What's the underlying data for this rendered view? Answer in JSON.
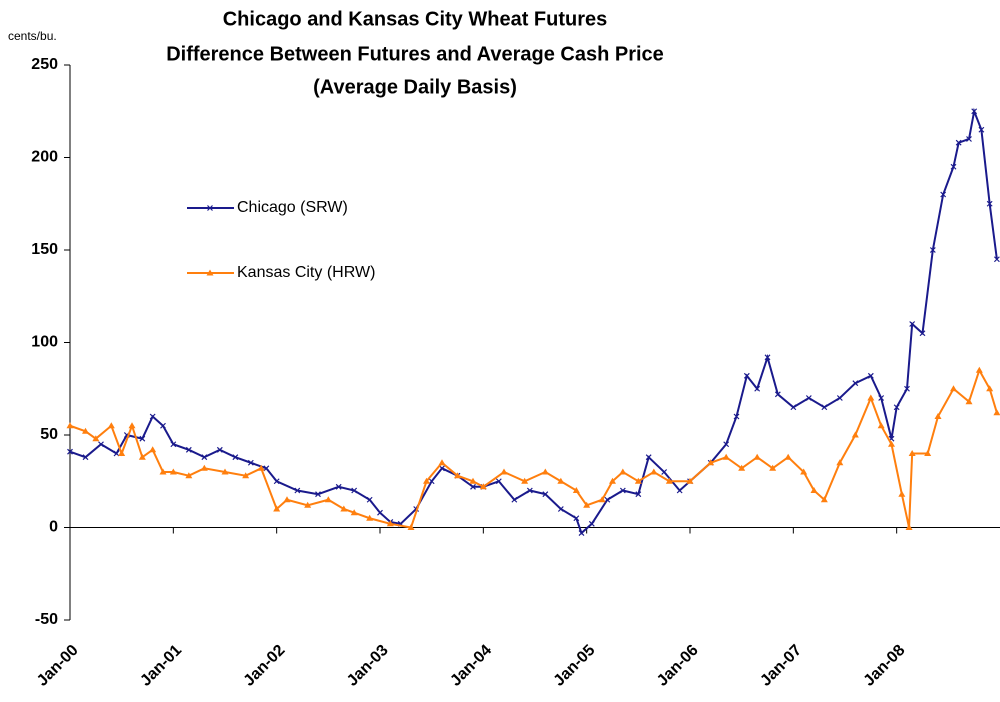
{
  "chart_data": {
    "type": "line",
    "title": [
      "Chicago and Kansas City Wheat Futures",
      "Difference Between Futures and Average Cash Price",
      "(Average Daily Basis)"
    ],
    "ylabel": "cents/bu.",
    "xlim": [
      2000,
      2009
    ],
    "xticks": [
      {
        "value": 2000,
        "label": "Jan-00"
      },
      {
        "value": 2001,
        "label": "Jan-01"
      },
      {
        "value": 2002,
        "label": "Jan-02"
      },
      {
        "value": 2003,
        "label": "Jan-03"
      },
      {
        "value": 2004,
        "label": "Jan-04"
      },
      {
        "value": 2005,
        "label": "Jan-05"
      },
      {
        "value": 2006,
        "label": "Jan-06"
      },
      {
        "value": 2007,
        "label": "Jan-07"
      },
      {
        "value": 2008,
        "label": "Jan-08"
      }
    ],
    "ylim": [
      -50,
      250
    ],
    "yticks": [
      -50,
      0,
      50,
      100,
      150,
      200,
      250
    ],
    "legend": "left",
    "series": [
      {
        "name": "Chicago (SRW)",
        "color": "#1a1a8c",
        "marker": "x",
        "x": [
          2000.0,
          2000.15,
          2000.3,
          2000.45,
          2000.55,
          2000.7,
          2000.8,
          2000.9,
          2001.0,
          2001.15,
          2001.3,
          2001.45,
          2001.6,
          2001.75,
          2001.9,
          2002.0,
          2002.2,
          2002.4,
          2002.6,
          2002.75,
          2002.9,
          2003.0,
          2003.1,
          2003.2,
          2003.35,
          2003.5,
          2003.6,
          2003.75,
          2003.9,
          2004.0,
          2004.15,
          2004.3,
          2004.45,
          2004.6,
          2004.75,
          2004.9,
          2004.95,
          2005.05,
          2005.2,
          2005.35,
          2005.5,
          2005.6,
          2005.75,
          2005.9,
          2006.0,
          2006.2,
          2006.35,
          2006.45,
          2006.55,
          2006.65,
          2006.75,
          2006.85,
          2007.0,
          2007.15,
          2007.3,
          2007.45,
          2007.6,
          2007.75,
          2007.85,
          2007.95,
          2008.0,
          2008.1,
          2008.15,
          2008.25,
          2008.35,
          2008.45,
          2008.55,
          2008.6,
          2008.7,
          2008.75,
          2008.82,
          2008.9,
          2008.97
        ],
        "values": [
          41,
          38,
          45,
          40,
          50,
          48,
          60,
          55,
          45,
          42,
          38,
          42,
          38,
          35,
          32,
          25,
          20,
          18,
          22,
          20,
          15,
          8,
          3,
          2,
          10,
          25,
          32,
          28,
          22,
          22,
          25,
          15,
          20,
          18,
          10,
          5,
          -3,
          2,
          15,
          20,
          18,
          38,
          30,
          20,
          25,
          35,
          45,
          60,
          82,
          75,
          92,
          72,
          65,
          70,
          65,
          70,
          78,
          82,
          70,
          48,
          65,
          75,
          110,
          105,
          150,
          180,
          195,
          208,
          210,
          225,
          215,
          175,
          145
        ]
      },
      {
        "name": "Kansas City (HRW)",
        "color": "#ff7f0e",
        "marker": "triangle",
        "x": [
          2000.0,
          2000.15,
          2000.25,
          2000.4,
          2000.5,
          2000.6,
          2000.7,
          2000.8,
          2000.9,
          2001.0,
          2001.15,
          2001.3,
          2001.5,
          2001.7,
          2001.85,
          2002.0,
          2002.1,
          2002.3,
          2002.5,
          2002.65,
          2002.75,
          2002.9,
          2003.1,
          2003.3,
          2003.45,
          2003.6,
          2003.75,
          2003.9,
          2004.0,
          2004.2,
          2004.4,
          2004.6,
          2004.75,
          2004.9,
          2005.0,
          2005.15,
          2005.25,
          2005.35,
          2005.5,
          2005.65,
          2005.8,
          2006.0,
          2006.2,
          2006.35,
          2006.5,
          2006.65,
          2006.8,
          2006.95,
          2007.1,
          2007.2,
          2007.3,
          2007.45,
          2007.6,
          2007.75,
          2007.85,
          2007.95,
          2008.05,
          2008.12,
          2008.15,
          2008.3,
          2008.4,
          2008.55,
          2008.7,
          2008.8,
          2008.9,
          2008.97
        ],
        "values": [
          55,
          52,
          48,
          55,
          40,
          55,
          38,
          42,
          30,
          30,
          28,
          32,
          30,
          28,
          32,
          10,
          15,
          12,
          15,
          10,
          8,
          5,
          2,
          0,
          25,
          35,
          28,
          25,
          22,
          30,
          25,
          30,
          25,
          20,
          12,
          15,
          25,
          30,
          25,
          30,
          25,
          25,
          35,
          38,
          32,
          38,
          32,
          38,
          30,
          20,
          15,
          35,
          50,
          70,
          55,
          45,
          18,
          0,
          40,
          40,
          60,
          75,
          68,
          85,
          75,
          62
        ]
      }
    ]
  }
}
